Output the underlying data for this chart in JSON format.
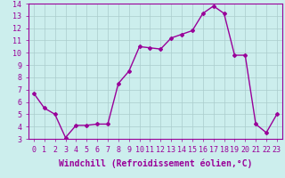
{
  "x": [
    0,
    1,
    2,
    3,
    4,
    5,
    6,
    7,
    8,
    9,
    10,
    11,
    12,
    13,
    14,
    15,
    16,
    17,
    18,
    19,
    20,
    21,
    22,
    23
  ],
  "y": [
    6.7,
    5.5,
    5.0,
    3.1,
    4.1,
    4.1,
    4.2,
    4.2,
    7.5,
    8.5,
    10.5,
    10.4,
    10.3,
    11.2,
    11.5,
    11.8,
    13.2,
    13.8,
    13.2,
    9.8,
    9.8,
    4.2,
    3.5,
    5.0
  ],
  "line_color": "#990099",
  "marker": "D",
  "marker_size": 2,
  "bg_color": "#cceeed",
  "grid_color": "#aacccc",
  "xlabel": "Windchill (Refroidissement éolien,°C)",
  "xlabel_fontsize": 7,
  "ylim": [
    3,
    14
  ],
  "xlim": [
    -0.5,
    23.5
  ],
  "yticks": [
    3,
    4,
    5,
    6,
    7,
    8,
    9,
    10,
    11,
    12,
    13,
    14
  ],
  "xticks": [
    0,
    1,
    2,
    3,
    4,
    5,
    6,
    7,
    8,
    9,
    10,
    11,
    12,
    13,
    14,
    15,
    16,
    17,
    18,
    19,
    20,
    21,
    22,
    23
  ],
  "tick_fontsize": 6,
  "line_width": 1.0
}
